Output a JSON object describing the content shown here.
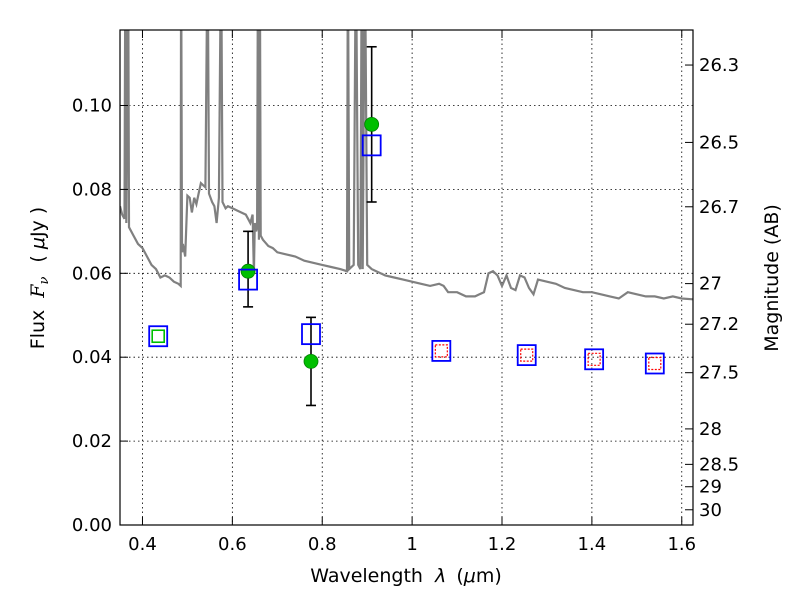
{
  "chart_data": {
    "type": "scatter",
    "x_axis": {
      "label_prefix": "Wavelength",
      "label_symbol": "λ",
      "label_units_open": "(",
      "label_mu": "μ",
      "label_units_rest": "m)",
      "range": [
        0.35,
        1.625
      ],
      "ticks": [
        0.4,
        0.6,
        0.8,
        1.0,
        1.2,
        1.4,
        1.6
      ],
      "tick_labels": [
        "0.4",
        "0.6",
        "0.8",
        "1",
        "1.2",
        "1.4",
        "1.6"
      ]
    },
    "y_axis": {
      "label_prefix": "Flux",
      "label_symbol": "F",
      "label_subscript": "ν",
      "label_units_open": "(",
      "label_mu": "μ",
      "label_units_rest": "Jy",
      "label_units_close": ")",
      "range": [
        0.0,
        0.118
      ],
      "ticks": [
        0.0,
        0.02,
        0.04,
        0.06,
        0.08,
        0.1
      ],
      "tick_labels": [
        "0.00",
        "0.02",
        "0.04",
        "0.06",
        "0.08",
        "0.10"
      ],
      "grid": true
    },
    "y2_axis": {
      "label": "Magnitude (AB)",
      "ticks": [
        26.3,
        26.5,
        26.7,
        27,
        27.2,
        27.5,
        28,
        28.5,
        29,
        30
      ],
      "tick_labels": [
        "26.3",
        "26.5",
        "26.7",
        "27",
        "27.2",
        "27.5",
        "28",
        "28.5",
        "29",
        "30"
      ]
    },
    "model_spectrum": {
      "color": "#808080",
      "points": [
        [
          0.35,
          0.076
        ],
        [
          0.355,
          0.074
        ],
        [
          0.36,
          0.073
        ],
        [
          0.362,
          0.14
        ],
        [
          0.364,
          0.072
        ],
        [
          0.368,
          0.14
        ],
        [
          0.37,
          0.071
        ],
        [
          0.38,
          0.069
        ],
        [
          0.39,
          0.067
        ],
        [
          0.4,
          0.066
        ],
        [
          0.41,
          0.064
        ],
        [
          0.42,
          0.062
        ],
        [
          0.43,
          0.061
        ],
        [
          0.44,
          0.059
        ],
        [
          0.45,
          0.0595
        ],
        [
          0.46,
          0.059
        ],
        [
          0.47,
          0.058
        ],
        [
          0.48,
          0.0575
        ],
        [
          0.485,
          0.057
        ],
        [
          0.486,
          0.14
        ],
        [
          0.488,
          0.065
        ],
        [
          0.49,
          0.067
        ],
        [
          0.495,
          0.064
        ],
        [
          0.5,
          0.0785
        ],
        [
          0.505,
          0.078
        ],
        [
          0.51,
          0.0745
        ],
        [
          0.515,
          0.078
        ],
        [
          0.52,
          0.0765
        ],
        [
          0.525,
          0.079
        ],
        [
          0.53,
          0.0815
        ],
        [
          0.535,
          0.081
        ],
        [
          0.54,
          0.0805
        ],
        [
          0.545,
          0.14
        ],
        [
          0.548,
          0.079
        ],
        [
          0.555,
          0.077
        ],
        [
          0.56,
          0.076
        ],
        [
          0.565,
          0.072
        ],
        [
          0.57,
          0.078
        ],
        [
          0.575,
          0.14
        ],
        [
          0.578,
          0.077
        ],
        [
          0.585,
          0.0755
        ],
        [
          0.59,
          0.076
        ],
        [
          0.6,
          0.0755
        ],
        [
          0.61,
          0.075
        ],
        [
          0.62,
          0.0745
        ],
        [
          0.63,
          0.074
        ],
        [
          0.635,
          0.073
        ],
        [
          0.64,
          0.072
        ],
        [
          0.645,
          0.074
        ],
        [
          0.648,
          0.06
        ],
        [
          0.65,
          0.072
        ],
        [
          0.653,
          0.07
        ],
        [
          0.655,
          0.071
        ],
        [
          0.657,
          0.14
        ],
        [
          0.659,
          0.068
        ],
        [
          0.661,
          0.14
        ],
        [
          0.663,
          0.069
        ],
        [
          0.668,
          0.068
        ],
        [
          0.672,
          0.0675
        ],
        [
          0.68,
          0.0665
        ],
        [
          0.69,
          0.066
        ],
        [
          0.7,
          0.065
        ],
        [
          0.72,
          0.0645
        ],
        [
          0.74,
          0.064
        ],
        [
          0.76,
          0.063
        ],
        [
          0.78,
          0.0625
        ],
        [
          0.8,
          0.062
        ],
        [
          0.82,
          0.0615
        ],
        [
          0.84,
          0.061
        ],
        [
          0.855,
          0.0605
        ],
        [
          0.857,
          0.14
        ],
        [
          0.86,
          0.061
        ],
        [
          0.87,
          0.062
        ],
        [
          0.875,
          0.14
        ],
        [
          0.88,
          0.062
        ],
        [
          0.885,
          0.061
        ],
        [
          0.888,
          0.14
        ],
        [
          0.89,
          0.061
        ],
        [
          0.895,
          0.14
        ],
        [
          0.9,
          0.062
        ],
        [
          0.91,
          0.061
        ],
        [
          0.92,
          0.0605
        ],
        [
          0.94,
          0.0595
        ],
        [
          0.96,
          0.059
        ],
        [
          0.98,
          0.0585
        ],
        [
          1.0,
          0.058
        ],
        [
          1.02,
          0.0575
        ],
        [
          1.04,
          0.057
        ],
        [
          1.06,
          0.0575
        ],
        [
          1.07,
          0.057
        ],
        [
          1.08,
          0.0555
        ],
        [
          1.1,
          0.0555
        ],
        [
          1.12,
          0.0545
        ],
        [
          1.14,
          0.0545
        ],
        [
          1.15,
          0.055
        ],
        [
          1.16,
          0.0555
        ],
        [
          1.17,
          0.06
        ],
        [
          1.18,
          0.0605
        ],
        [
          1.19,
          0.0595
        ],
        [
          1.2,
          0.057
        ],
        [
          1.21,
          0.0595
        ],
        [
          1.215,
          0.058
        ],
        [
          1.22,
          0.0565
        ],
        [
          1.23,
          0.056
        ],
        [
          1.24,
          0.0595
        ],
        [
          1.25,
          0.059
        ],
        [
          1.26,
          0.0565
        ],
        [
          1.27,
          0.055
        ],
        [
          1.28,
          0.0585
        ],
        [
          1.3,
          0.058
        ],
        [
          1.32,
          0.0575
        ],
        [
          1.34,
          0.0565
        ],
        [
          1.36,
          0.056
        ],
        [
          1.38,
          0.0555
        ],
        [
          1.4,
          0.0555
        ],
        [
          1.42,
          0.055
        ],
        [
          1.44,
          0.0545
        ],
        [
          1.46,
          0.054
        ],
        [
          1.48,
          0.0555
        ],
        [
          1.5,
          0.055
        ],
        [
          1.52,
          0.0545
        ],
        [
          1.54,
          0.0545
        ],
        [
          1.56,
          0.054
        ],
        [
          1.58,
          0.0545
        ],
        [
          1.6,
          0.054
        ],
        [
          1.625,
          0.0538
        ]
      ]
    },
    "observed": {
      "color": "#00bf00",
      "points": [
        {
          "x": 0.435,
          "y": 0.045
        },
        {
          "x": 0.635,
          "y": 0.0605,
          "err_low": 0.052,
          "err_high": 0.07
        },
        {
          "x": 0.775,
          "y": 0.039,
          "err_low": 0.0285,
          "err_high": 0.0495
        },
        {
          "x": 0.91,
          "y": 0.0955,
          "err_low": 0.077,
          "err_high": 0.114
        }
      ]
    },
    "model_bands": {
      "color": "#0000ff",
      "points": [
        {
          "x": 0.435,
          "y": 0.045
        },
        {
          "x": 0.635,
          "y": 0.0585
        },
        {
          "x": 0.775,
          "y": 0.0455
        },
        {
          "x": 0.91,
          "y": 0.0905
        },
        {
          "x": 1.065,
          "y": 0.0415
        },
        {
          "x": 1.255,
          "y": 0.0405
        },
        {
          "x": 1.405,
          "y": 0.0395
        },
        {
          "x": 1.54,
          "y": 0.0385
        }
      ]
    },
    "nir_bands": {
      "color": "#ff0000",
      "points": [
        {
          "x": 1.065,
          "y": 0.0415
        },
        {
          "x": 1.255,
          "y": 0.0405
        },
        {
          "x": 1.405,
          "y": 0.0395
        },
        {
          "x": 1.54,
          "y": 0.0385
        }
      ]
    }
  }
}
